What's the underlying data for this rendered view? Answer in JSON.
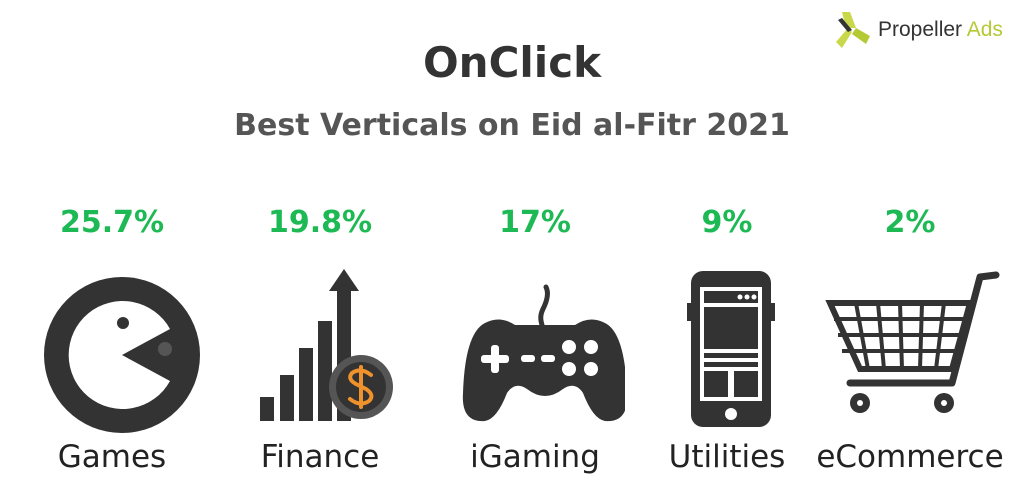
{
  "brand": {
    "name": "Propeller",
    "name_accent": "Ads",
    "accent_color": "#b5c934"
  },
  "title": "OnClick",
  "subtitle": "Best Verticals on Eid al-Fitr 2021",
  "colors": {
    "percent": "#1db954",
    "icon": "#333333",
    "coin_symbol": "#f0922b"
  },
  "verticals": [
    {
      "label": "Games",
      "percent": "25.7%",
      "icon": "pacman-icon"
    },
    {
      "label": "Finance",
      "percent": "19.8%",
      "icon": "finance-growth-icon"
    },
    {
      "label": "iGaming",
      "percent": "17%",
      "icon": "gamepad-icon"
    },
    {
      "label": "Utilities",
      "percent": "9%",
      "icon": "smartphone-icon"
    },
    {
      "label": "eCommerce",
      "percent": "2%",
      "icon": "shopping-cart-icon"
    }
  ]
}
